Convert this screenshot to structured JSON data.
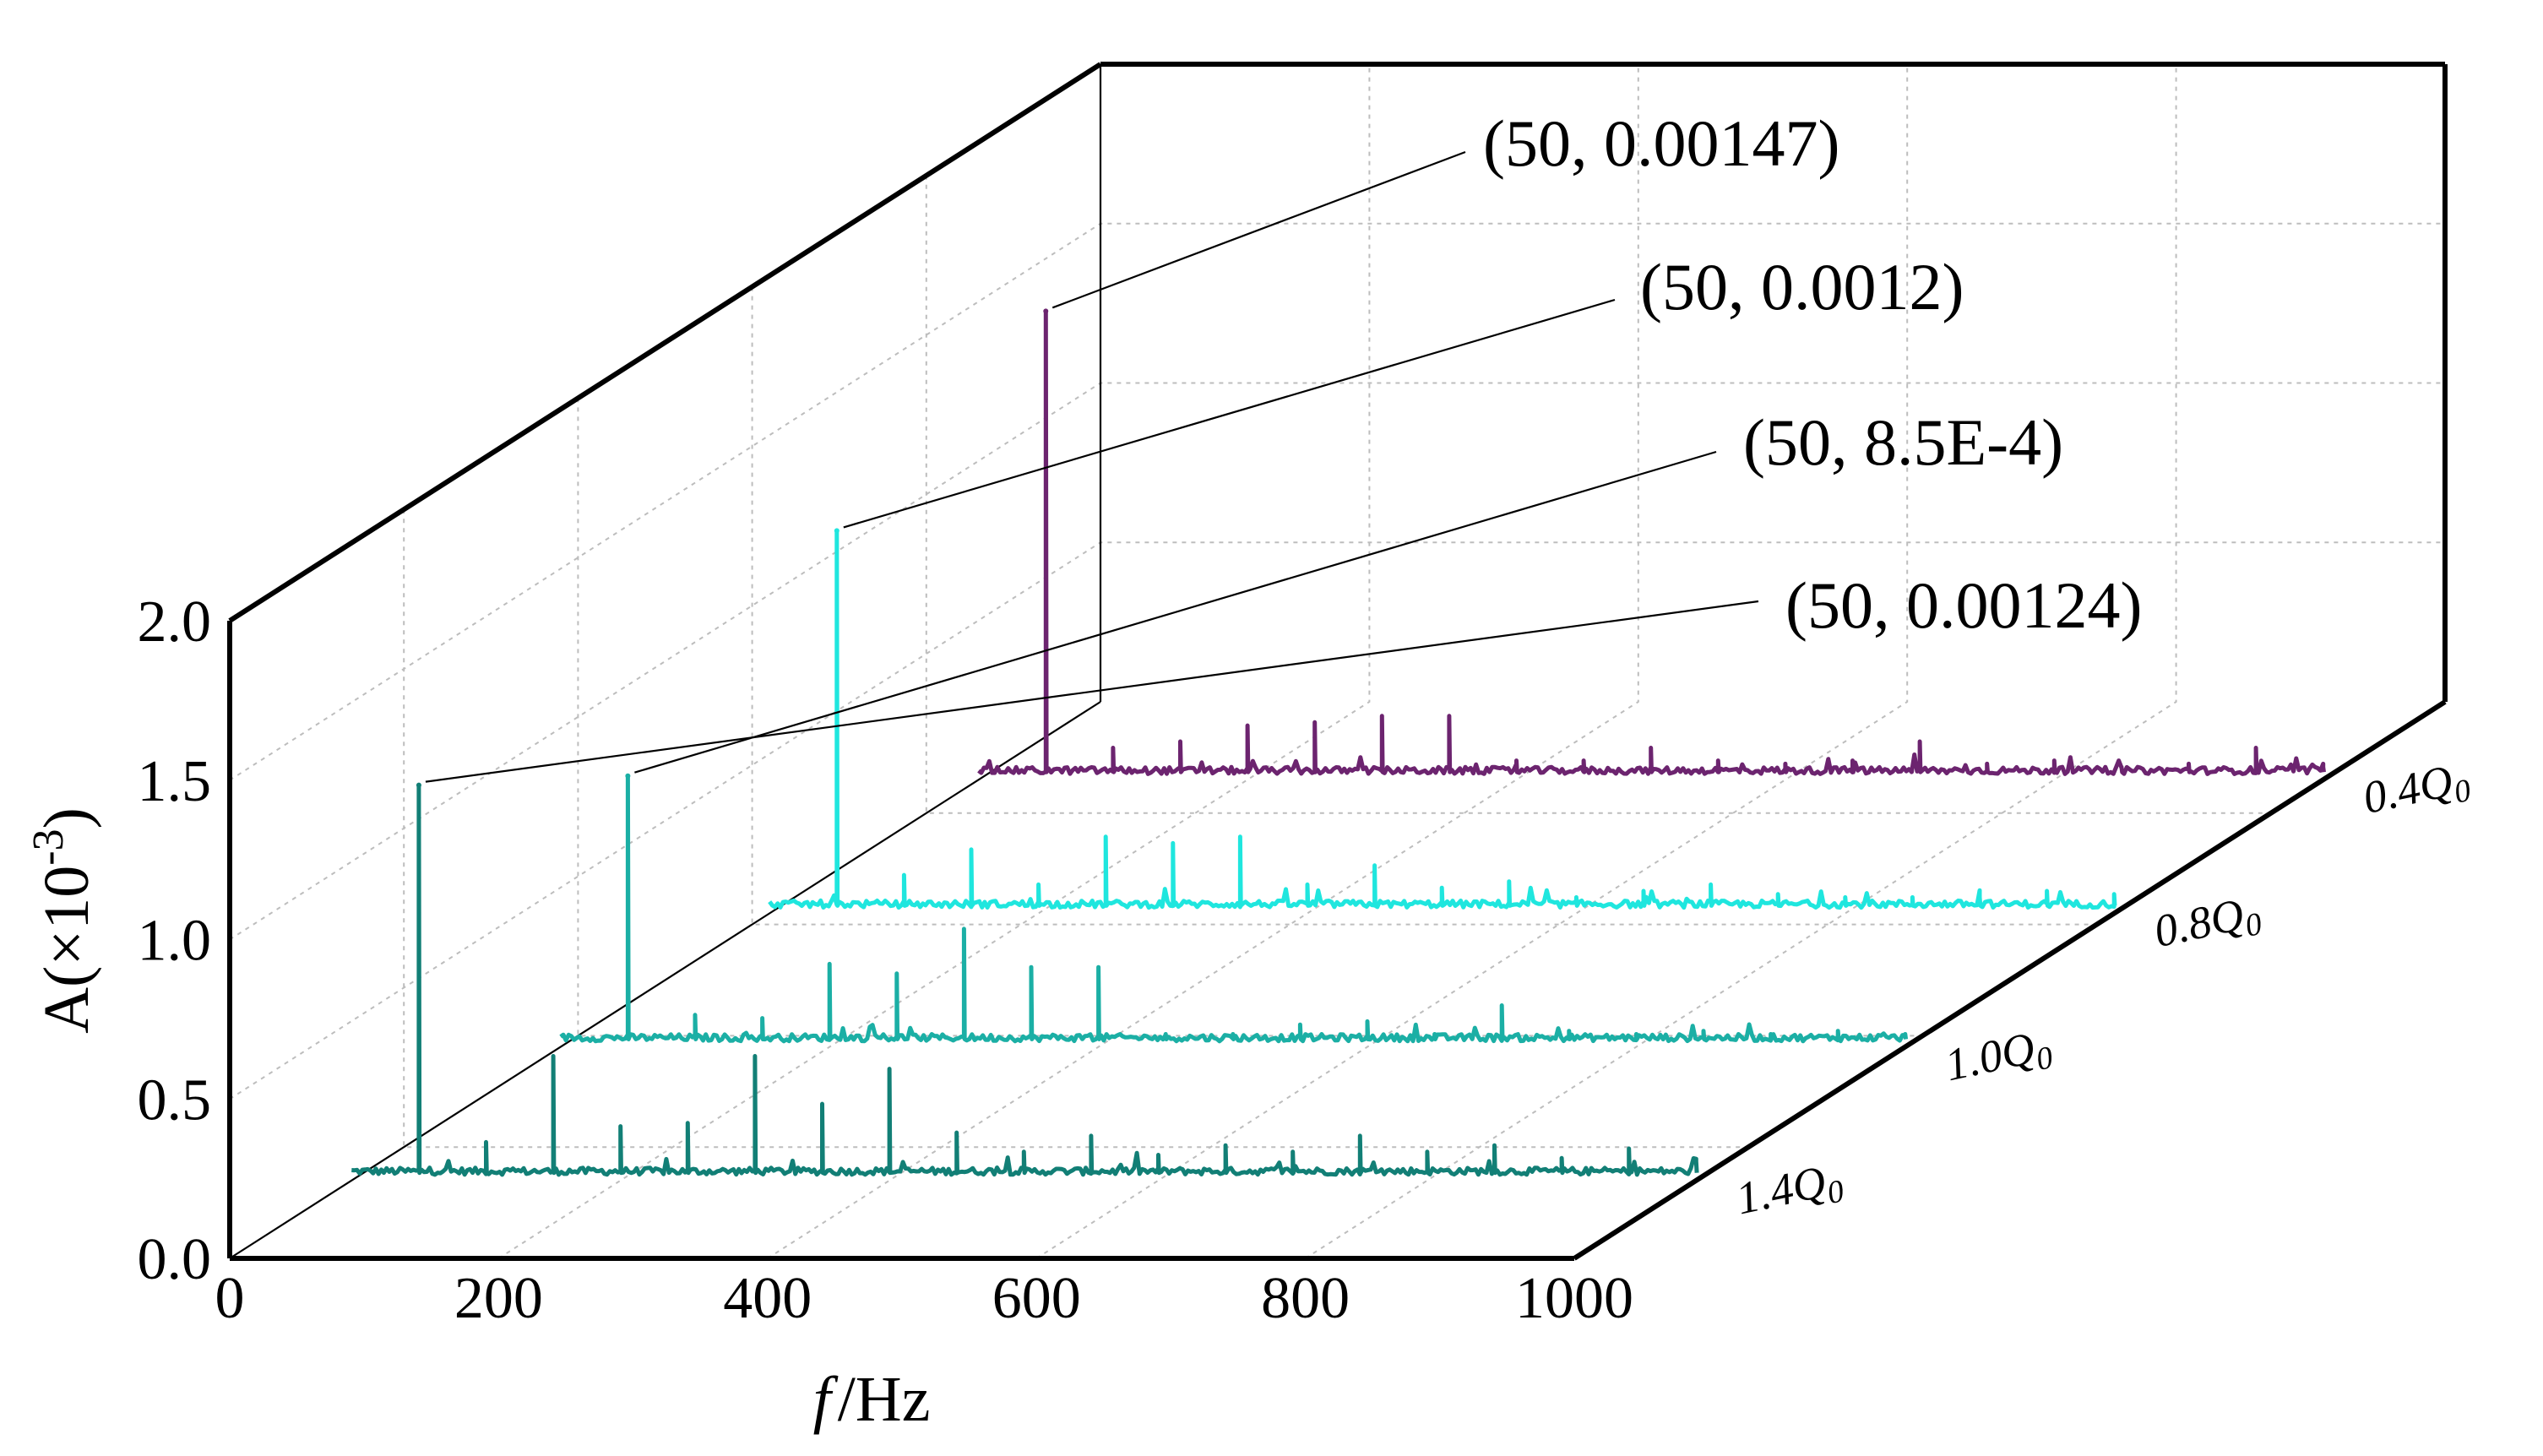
{
  "chart_data": {
    "type": "line",
    "subtype": "3d-waterfall",
    "title": "",
    "xlabel_italic": "f",
    "xlabel_unit": "/Hz",
    "ylabel_main": "A(×10",
    "ylabel_exp": "-3",
    "ylabel_close": ")",
    "xlim": [
      0,
      1000
    ],
    "ylim": [
      0.0,
      2.0
    ],
    "x_ticks": [
      "0",
      "200",
      "400",
      "600",
      "800",
      "1000"
    ],
    "y_ticks": [
      "0.0",
      "0.5",
      "1.0",
      "1.5",
      "2.0"
    ],
    "x_tick_values": [
      0,
      200,
      400,
      600,
      800,
      1000
    ],
    "y_tick_values": [
      0.0,
      0.5,
      1.0,
      1.5,
      2.0
    ],
    "grid": true,
    "fundamental_hz": 50,
    "harmonic_step_hz": 50,
    "noise_level": 0.04,
    "series": [
      {
        "name": "1.4Q0",
        "depth_label": "1.4Q",
        "depth_sub": "0",
        "color": "#127F76",
        "peak_label": "(50, 0.00124)",
        "fundamental_amplitude": 1.24,
        "harmonic_amplitudes": [
          0.12,
          0.39,
          0.17,
          0.18,
          0.39,
          0.24,
          0.35,
          0.15,
          0.09,
          0.14,
          0.08,
          0.11,
          0.09,
          0.14,
          0.09,
          0.11,
          0.07,
          0.1,
          0.06
        ]
      },
      {
        "name": "1.0Q0",
        "depth_label": "1.0Q",
        "depth_sub": "0",
        "color": "#1BAFA5",
        "peak_label": "(50, 8.5E-4)",
        "fundamental_amplitude": 0.85,
        "harmonic_amplitudes": [
          0.1,
          0.09,
          0.26,
          0.23,
          0.37,
          0.25,
          0.25,
          0.04,
          0.04,
          0.07,
          0.08,
          0.04,
          0.13,
          0.05,
          0.04,
          0.05,
          0.04,
          0.05,
          0.04
        ]
      },
      {
        "name": "0.8Q0",
        "depth_label": "0.8Q",
        "depth_sub": "0",
        "color": "#1FE6DE",
        "peak_label": "(50, 0.0012)",
        "fundamental_amplitude": 1.2,
        "harmonic_amplitudes": [
          0.12,
          0.2,
          0.09,
          0.24,
          0.22,
          0.24,
          0.09,
          0.15,
          0.08,
          0.1,
          0.05,
          0.07,
          0.09,
          0.06,
          0.05,
          0.05,
          0.05,
          0.07,
          0.06
        ]
      },
      {
        "name": "0.4Q0",
        "depth_label": "0.4Q",
        "depth_sub": "0",
        "color": "#6C246F",
        "peak_label": "(50, 0.00147)",
        "fundamental_amplitude": 1.47,
        "harmonic_amplitudes": [
          0.1,
          0.12,
          0.17,
          0.18,
          0.2,
          0.2,
          0.06,
          0.06,
          0.1,
          0.06,
          0.05,
          0.06,
          0.12,
          0.05,
          0.06,
          0.04,
          0.05,
          0.1,
          0.04
        ]
      }
    ]
  }
}
